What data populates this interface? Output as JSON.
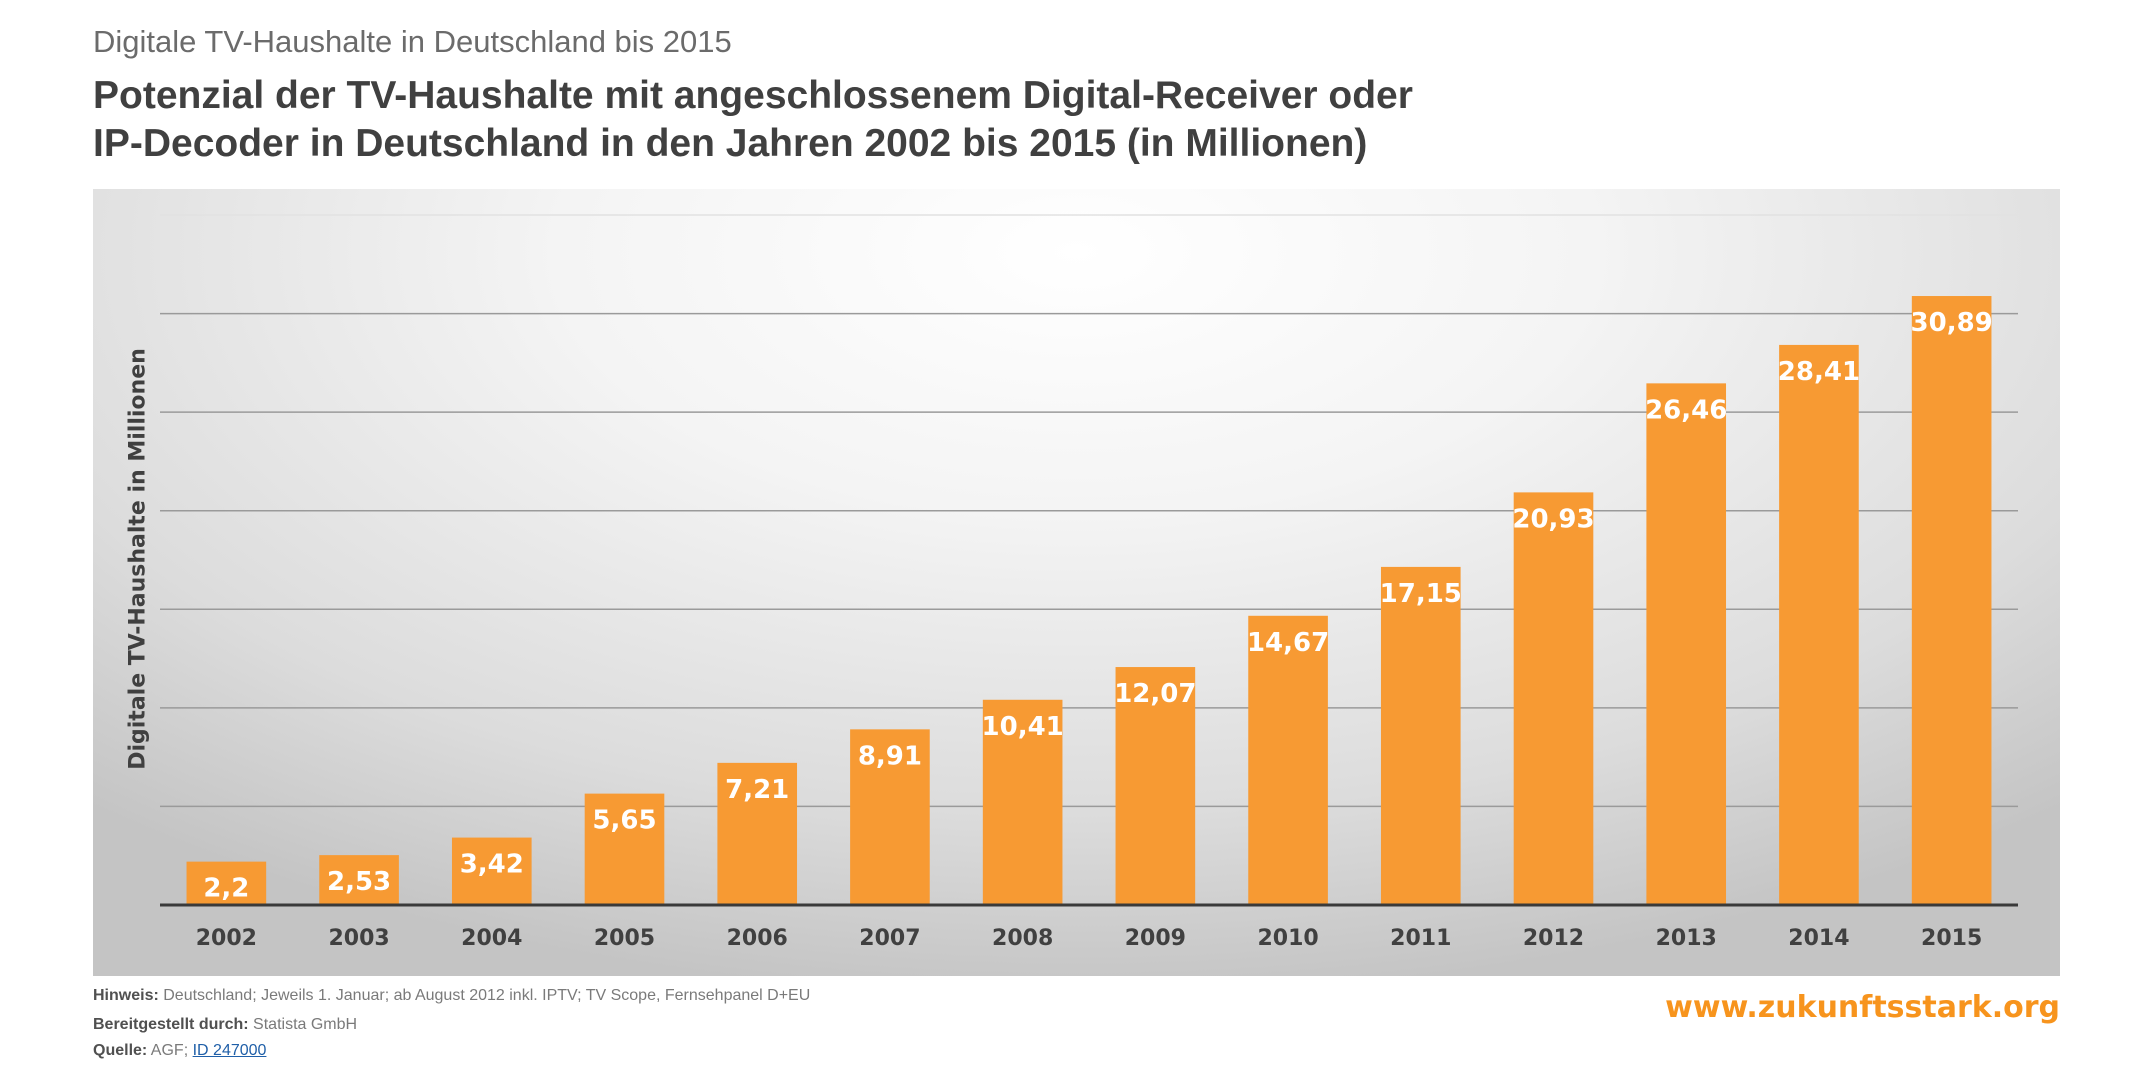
{
  "header": {
    "subtitle": "Digitale TV-Haushalte in Deutschland bis 2015",
    "title_line1": "Potenzial der TV-Haushalte mit angeschlossenem Digital-Receiver oder",
    "title_line2": "IP-Decoder in Deutschland in den Jahren 2002 bis 2015 (in Millionen)"
  },
  "chart_data": {
    "type": "bar",
    "title": "Potenzial der TV-Haushalte mit angeschlossenem Digital-Receiver oder IP-Decoder in Deutschland in den Jahren 2002 bis 2015 (in Millionen)",
    "ylabel": "Digitale TV-Haushalte in Millionen",
    "xlabel": "",
    "categories": [
      "2002",
      "2003",
      "2004",
      "2005",
      "2006",
      "2007",
      "2008",
      "2009",
      "2010",
      "2011",
      "2012",
      "2013",
      "2014",
      "2015"
    ],
    "values": [
      2.2,
      2.53,
      3.42,
      5.65,
      7.21,
      8.91,
      10.41,
      12.07,
      14.67,
      17.15,
      20.93,
      26.46,
      28.41,
      30.89
    ],
    "value_labels": [
      "2,2",
      "2,53",
      "3,42",
      "5,65",
      "7,21",
      "8,91",
      "10,41",
      "12,07",
      "14,67",
      "17,15",
      "20,93",
      "26,46",
      "28,41",
      "30,89"
    ],
    "ylim": [
      0,
      35
    ],
    "grid": true,
    "y_tick_labels_shown": false,
    "bar_color": "#f79a33",
    "value_label_color": "#ffffff"
  },
  "footer": {
    "hinweis_label": "Hinweis:",
    "hinweis_text": "Deutschland; Jeweils 1. Januar; ab August 2012 inkl. IPTV; TV Scope, Fernsehpanel D+EU",
    "provided_label": "Bereitgestellt durch:",
    "provided_text": "Statista GmbH",
    "source_label": "Quelle:",
    "source_text": "AGF;",
    "source_link": "ID 247000",
    "brand": "www.zukunftsstark.org"
  }
}
